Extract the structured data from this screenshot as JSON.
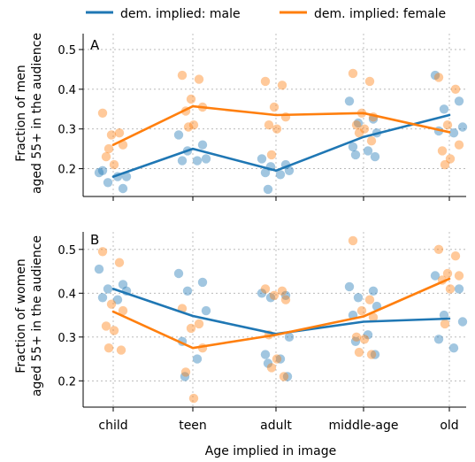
{
  "legend": {
    "placement": "top-center",
    "items": [
      {
        "label": "dem. implied: male",
        "color": "#1f77b4"
      },
      {
        "label": "dem. implied: female",
        "color": "#ff7f0e"
      }
    ]
  },
  "x_axis": {
    "label": "Age implied in image",
    "categories": [
      "child",
      "teen",
      "adult",
      "middle-age",
      "old"
    ]
  },
  "chart_data": [
    {
      "type": "scatter",
      "panel_label": "A",
      "ylabel_lines": [
        "Fraction of men",
        "aged 55+ in the audience"
      ],
      "ylim": [
        0.13,
        0.54
      ],
      "yticks": [
        0.2,
        0.3,
        0.4,
        0.5
      ],
      "ytick_labels": [
        "0.2",
        "0.3",
        "0.4",
        "0.5"
      ],
      "grid": true,
      "categories": [
        "child",
        "teen",
        "adult",
        "middle-age",
        "old"
      ],
      "series": [
        {
          "name": "dem. implied: male",
          "color": "#1f77b4",
          "mean": [
            0.18,
            0.25,
            0.195,
            0.28,
            0.335
          ],
          "points": [
            [
              0.19,
              0.15,
              0.165,
              0.18,
              0.195,
              0.18
            ],
            [
              0.285,
              0.26,
              0.245,
              0.225,
              0.22,
              0.22
            ],
            [
              0.225,
              0.21,
              0.205,
              0.195,
              0.19,
              0.185,
              0.148
            ],
            [
              0.37,
              0.325,
              0.315,
              0.29,
              0.255,
              0.245,
              0.235,
              0.23
            ],
            [
              0.435,
              0.37,
              0.35,
              0.305,
              0.295,
              0.29
            ]
          ]
        },
        {
          "name": "dem. implied: female",
          "color": "#ff7f0e",
          "mean": [
            0.26,
            0.357,
            0.335,
            0.34,
            0.292
          ],
          "points": [
            [
              0.34,
              0.29,
              0.285,
              0.26,
              0.23,
              0.21,
              0.25
            ],
            [
              0.435,
              0.425,
              0.375,
              0.355,
              0.345,
              0.31,
              0.305
            ],
            [
              0.42,
              0.41,
              0.355,
              0.33,
              0.31,
              0.3,
              0.235
            ],
            [
              0.44,
              0.42,
              0.34,
              0.33,
              0.31,
              0.3,
              0.29,
              0.27
            ],
            [
              0.43,
              0.4,
              0.31,
              0.26,
              0.245,
              0.225,
              0.21
            ]
          ]
        }
      ]
    },
    {
      "type": "scatter",
      "panel_label": "B",
      "ylabel_lines": [
        "Fraction of women",
        "aged 55+ in the audience"
      ],
      "ylim": [
        0.14,
        0.54
      ],
      "yticks": [
        0.2,
        0.3,
        0.4,
        0.5
      ],
      "ytick_labels": [
        "0.2",
        "0.3",
        "0.4",
        "0.5"
      ],
      "grid": true,
      "categories": [
        "child",
        "teen",
        "adult",
        "middle-age",
        "old"
      ],
      "series": [
        {
          "name": "dem. implied: male",
          "color": "#1f77b4",
          "mean": [
            0.41,
            0.348,
            0.307,
            0.335,
            0.342
          ],
          "points": [
            [
              0.455,
              0.42,
              0.41,
              0.405,
              0.39,
              0.385
            ],
            [
              0.445,
              0.425,
              0.405,
              0.36,
              0.29,
              0.25,
              0.21
            ],
            [
              0.4,
              0.395,
              0.39,
              0.3,
              0.26,
              0.25,
              0.24,
              0.21
            ],
            [
              0.415,
              0.405,
              0.39,
              0.37,
              0.35,
              0.305,
              0.29,
              0.26
            ],
            [
              0.44,
              0.41,
              0.35,
              0.335,
              0.295,
              0.275
            ]
          ]
        },
        {
          "name": "dem. implied: female",
          "color": "#ff7f0e",
          "mean": [
            0.358,
            0.275,
            0.305,
            0.347,
            0.433
          ],
          "points": [
            [
              0.495,
              0.47,
              0.375,
              0.36,
              0.325,
              0.315,
              0.275,
              0.27
            ],
            [
              0.365,
              0.33,
              0.32,
              0.275,
              0.22,
              0.16
            ],
            [
              0.41,
              0.405,
              0.395,
              0.385,
              0.305,
              0.25,
              0.23,
              0.21
            ],
            [
              0.52,
              0.385,
              0.36,
              0.345,
              0.3,
              0.295,
              0.265,
              0.26
            ],
            [
              0.5,
              0.485,
              0.445,
              0.44,
              0.43,
              0.41,
              0.33
            ]
          ]
        }
      ]
    }
  ]
}
